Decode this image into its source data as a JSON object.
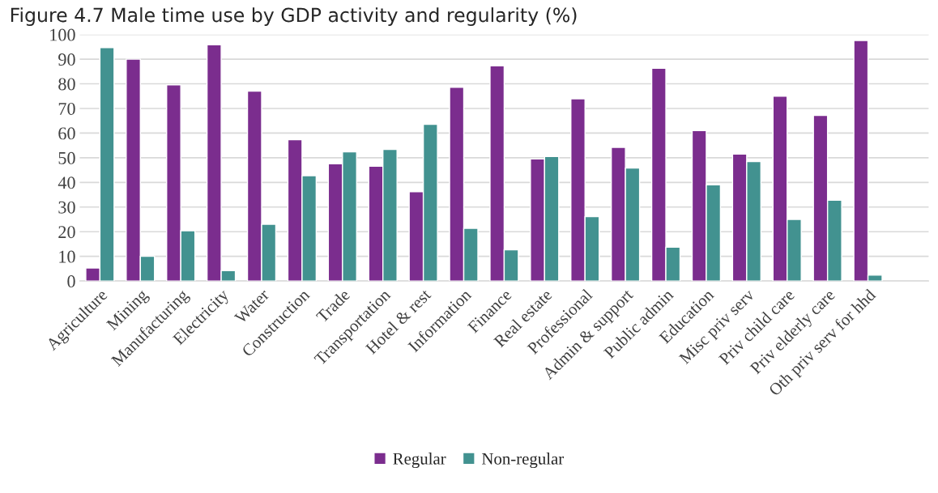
{
  "chart_data": {
    "type": "bar",
    "title": "Figure 4.7 Male time use by GDP activity and regularity (%)",
    "categories": [
      "Agriculture",
      "Mining",
      "Manufacturing",
      "Electricity",
      "Water",
      "Construction",
      "Trade",
      "Transportation",
      "Hotel & rest",
      "Information",
      "Finance",
      "Real estate",
      "Professional",
      "Admin & support",
      "Public admin",
      "Education",
      "Misc priv serv",
      "Priv child care",
      "Priv elderly care",
      "Oth priv serv for hhd",
      null
    ],
    "series": [
      {
        "name": "Regular",
        "color": "#7b2d8e",
        "values": [
          5.3,
          90,
          79.6,
          95.8,
          77,
          57.3,
          47.6,
          46.6,
          36.2,
          78.6,
          87.3,
          49.5,
          73.9,
          54.2,
          86.3,
          61,
          51.5,
          75,
          67.2,
          97.6,
          null
        ]
      },
      {
        "name": "Non-regular",
        "color": "#429290",
        "values": [
          94.7,
          10,
          20.4,
          4.2,
          23,
          42.7,
          52.4,
          53.4,
          63.6,
          21.4,
          12.7,
          50.5,
          26.1,
          45.8,
          13.7,
          39,
          48.5,
          25,
          32.8,
          2.4,
          null
        ]
      }
    ],
    "ylim": [
      0,
      100
    ],
    "yticks": [
      0,
      10,
      20,
      30,
      40,
      50,
      60,
      70,
      80,
      90,
      100
    ],
    "grid": "y",
    "legend": "bottom"
  }
}
